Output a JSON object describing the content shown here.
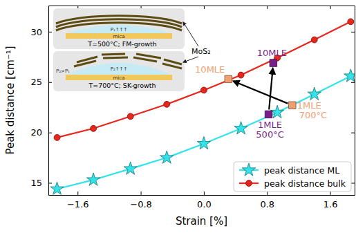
{
  "chart_data": {
    "type": "line",
    "x_label": "Strain [%]",
    "y_label": "Peak distance [cm⁻¹]",
    "xlim": [
      -1.97,
      1.91
    ],
    "xticks": [
      {
        "value": -1.6,
        "label": "−1.6"
      },
      {
        "value": -0.8,
        "label": "−0.8"
      },
      {
        "value": 0,
        "label": "0.0"
      },
      {
        "value": 0.8,
        "label": "0.8"
      },
      {
        "value": 1.6,
        "label": "1.6"
      }
    ],
    "ylim": [
      13.8,
      32.6
    ],
    "yticks": [
      15,
      20,
      25,
      30
    ],
    "legend": "lower right",
    "x": [
      -1.86,
      -1.4,
      -0.93,
      -0.47,
      0,
      0.47,
      0.93,
      1.4,
      1.86
    ],
    "series": [
      {
        "name": "peak distance ML",
        "color": "#33e3ea",
        "marker": "star",
        "values": [
          14.4,
          15.3,
          16.4,
          17.5,
          18.9,
          20.4,
          22.0,
          23.8,
          25.6
        ]
      },
      {
        "name": "peak distance bulk",
        "color": "#e8261c",
        "marker": "circle",
        "values": [
          19.5,
          20.4,
          21.6,
          22.8,
          24.2,
          25.7,
          27.4,
          29.2,
          31.0
        ]
      }
    ],
    "samples": [
      {
        "color": "#7a1f8a",
        "points": [
          {
            "x": 0.82,
            "y": 21.8,
            "label": [
              "1MLE",
              "500°C"
            ]
          },
          {
            "x": 0.88,
            "y": 26.9,
            "label": [
              "10MLE"
            ]
          }
        ]
      },
      {
        "color": "#f0a070",
        "points": [
          {
            "x": 1.12,
            "y": 22.7,
            "label": [
              "1MLE",
              "700°C"
            ]
          },
          {
            "x": 0.31,
            "y": 25.3,
            "label": [
              "10MLE"
            ]
          }
        ]
      }
    ],
    "inset": {
      "label": "MoS₂",
      "panels": [
        {
          "texts": [
            "P₁↑↑↑"
          ],
          "substrate": "mica",
          "caption": "T=500°C; FM-growth"
        },
        {
          "texts": [
            "P₂>P₁",
            "P₂↑↑↑"
          ],
          "substrate": "mica",
          "caption": "T=700°C; SK-growth"
        }
      ]
    }
  }
}
